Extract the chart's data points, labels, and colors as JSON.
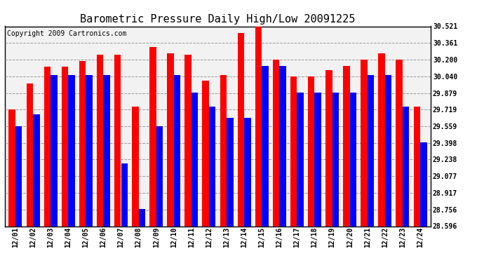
{
  "title": "Barometric Pressure Daily High/Low 20091225",
  "copyright": "Copyright 2009 Cartronics.com",
  "yticks": [
    28.596,
    28.756,
    28.917,
    29.077,
    29.238,
    29.398,
    29.559,
    29.719,
    29.879,
    30.04,
    30.2,
    30.361,
    30.521
  ],
  "ymin": 28.596,
  "ymax": 30.521,
  "categories": [
    "12/01",
    "12/02",
    "12/03",
    "12/04",
    "12/05",
    "12/06",
    "12/07",
    "12/08",
    "12/09",
    "12/10",
    "12/11",
    "12/12",
    "12/13",
    "12/14",
    "12/15",
    "12/16",
    "12/17",
    "12/18",
    "12/19",
    "12/20",
    "12/21",
    "12/22",
    "12/23",
    "12/24"
  ],
  "highs": [
    29.72,
    29.97,
    30.13,
    30.13,
    30.19,
    30.25,
    30.25,
    29.75,
    30.32,
    30.26,
    30.25,
    30.0,
    30.05,
    30.46,
    30.52,
    30.2,
    30.04,
    30.04,
    30.1,
    30.14,
    30.2,
    30.26,
    30.2,
    29.75
  ],
  "lows": [
    29.56,
    29.67,
    30.05,
    30.05,
    30.05,
    30.05,
    29.2,
    28.76,
    29.56,
    30.05,
    29.88,
    29.75,
    29.64,
    29.64,
    30.14,
    30.14,
    29.88,
    29.88,
    29.88,
    29.88,
    30.05,
    30.05,
    29.75,
    29.4
  ],
  "high_color": "#FF0000",
  "low_color": "#0000FF",
  "bg_color": "#F2F2F2",
  "grid_color": "#999999",
  "title_fontsize": 11,
  "copyright_fontsize": 7,
  "tick_fontsize": 7
}
